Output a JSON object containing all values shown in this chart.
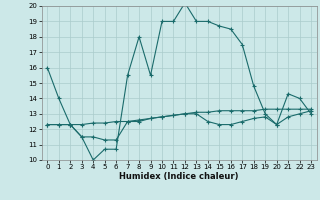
{
  "xlabel": "Humidex (Indice chaleur)",
  "background_color": "#cce8e8",
  "grid_color": "#aacccc",
  "line_color": "#1a6b6b",
  "x_values": [
    0,
    1,
    2,
    3,
    4,
    5,
    6,
    7,
    8,
    9,
    10,
    11,
    12,
    13,
    14,
    15,
    16,
    17,
    18,
    19,
    20,
    21,
    22,
    23
  ],
  "line1": [
    16,
    14,
    12.3,
    11.5,
    10,
    10.7,
    10.7,
    15.5,
    18.0,
    15.5,
    19.0,
    19.0,
    20.2,
    19.0,
    19.0,
    18.7,
    18.5,
    17.5,
    14.8,
    13.0,
    12.3,
    14.3,
    14.0,
    13.0
  ],
  "line2": [
    12.3,
    12.3,
    12.3,
    11.5,
    11.5,
    11.3,
    11.3,
    12.5,
    12.5,
    12.7,
    12.8,
    12.9,
    13.0,
    13.0,
    12.5,
    12.3,
    12.3,
    12.5,
    12.7,
    12.8,
    12.3,
    12.8,
    13.0,
    13.2
  ],
  "line3": [
    12.3,
    12.3,
    12.3,
    12.3,
    12.4,
    12.4,
    12.5,
    12.5,
    12.6,
    12.7,
    12.8,
    12.9,
    13.0,
    13.1,
    13.1,
    13.2,
    13.2,
    13.2,
    13.2,
    13.3,
    13.3,
    13.3,
    13.3,
    13.3
  ],
  "ylim": [
    10,
    20
  ],
  "xlim": [
    -0.5,
    23.5
  ],
  "yticks": [
    10,
    11,
    12,
    13,
    14,
    15,
    16,
    17,
    18,
    19,
    20
  ],
  "xticks": [
    0,
    1,
    2,
    3,
    4,
    5,
    6,
    7,
    8,
    9,
    10,
    11,
    12,
    13,
    14,
    15,
    16,
    17,
    18,
    19,
    20,
    21,
    22,
    23
  ]
}
